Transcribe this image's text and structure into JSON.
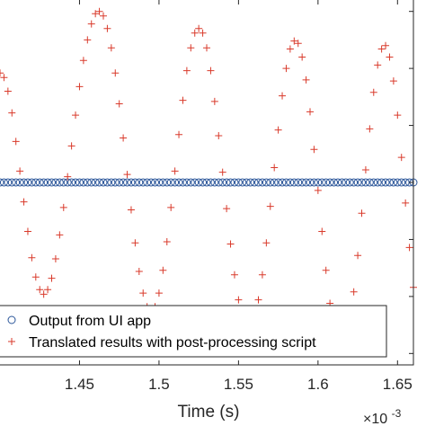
{
  "chart_data": {
    "type": "scatter",
    "title": "",
    "xlabel": "Time (s)",
    "ylabel": "",
    "x_exponent_base": "×10",
    "x_exponent_power": "-3",
    "x_ticks": [
      1.45,
      1.5,
      1.55,
      1.6,
      1.65
    ],
    "x_tick_labels": [
      "1.45",
      "1.5",
      "1.55",
      "1.6",
      "1.65"
    ],
    "xlim": [
      1.4,
      1.66
    ],
    "ylim": [
      -1.6,
      1.6
    ],
    "y_ticks": [
      -1.5,
      -1,
      -0.5,
      0,
      0.5,
      1,
      1.5
    ],
    "grid": false,
    "legend_location": "bottom",
    "sample_step": 0.0025,
    "series": [
      {
        "name": "Output from UI app",
        "marker": "circle",
        "color": "#2a5599",
        "y": [
          0,
          0,
          0,
          0,
          0,
          0,
          0,
          0,
          0,
          0,
          0,
          0,
          0,
          0,
          0,
          0,
          0,
          0,
          0,
          0,
          0,
          0,
          0,
          0,
          0,
          0,
          0,
          0,
          0,
          0,
          0,
          0,
          0,
          0,
          0,
          0,
          0,
          0,
          0,
          0,
          0,
          0,
          0,
          0,
          0,
          0,
          0,
          0,
          0,
          0,
          0,
          0,
          0,
          0,
          0,
          0,
          0,
          0,
          0,
          0,
          0,
          0,
          0,
          0,
          0,
          0,
          0,
          0,
          0,
          0,
          0,
          0,
          0,
          0,
          0,
          0,
          0,
          0,
          0,
          0,
          0,
          0,
          0,
          0,
          0,
          0,
          0,
          0,
          0,
          0,
          0,
          0,
          0,
          0,
          0,
          0,
          0,
          0,
          0,
          0,
          0,
          0,
          0,
          0,
          0
        ]
      },
      {
        "name": "Translated results with post-processing script",
        "marker": "plus",
        "color": "#d93a2b",
        "y": [
          0.96,
          0.92,
          0.8,
          0.61,
          0.36,
          0.1,
          -0.17,
          -0.43,
          -0.66,
          -0.83,
          -0.94,
          -0.98,
          -0.94,
          -0.84,
          -0.67,
          -0.46,
          -0.22,
          0.05,
          0.32,
          0.59,
          0.84,
          1.07,
          1.25,
          1.39,
          1.48,
          1.5,
          1.46,
          1.35,
          1.18,
          0.96,
          0.69,
          0.39,
          0.07,
          -0.24,
          -0.53,
          -0.78,
          -0.97,
          -1.09,
          -1.13,
          -1.09,
          -0.97,
          -0.77,
          -0.52,
          -0.22,
          0.1,
          0.42,
          0.72,
          0.98,
          1.18,
          1.31,
          1.35,
          1.31,
          1.18,
          0.98,
          0.71,
          0.41,
          0.09,
          -0.23,
          -0.54,
          -0.81,
          -1.03,
          -1.18,
          -1.26,
          -1.26,
          -1.18,
          -1.03,
          -0.81,
          -0.53,
          -0.21,
          0.13,
          0.46,
          0.76,
          1.0,
          1.17,
          1.24,
          1.22,
          1.1,
          0.9,
          0.62,
          0.29,
          -0.07,
          -0.43,
          -0.77,
          -1.06,
          -1.28,
          -1.41,
          -1.44,
          -1.37,
          -1.21,
          -0.96,
          -0.64,
          -0.27,
          0.11,
          0.47,
          0.79,
          1.03,
          1.17,
          1.2,
          1.1,
          0.89,
          0.59,
          0.22,
          -0.18,
          -0.57,
          -0.92
        ]
      }
    ]
  }
}
